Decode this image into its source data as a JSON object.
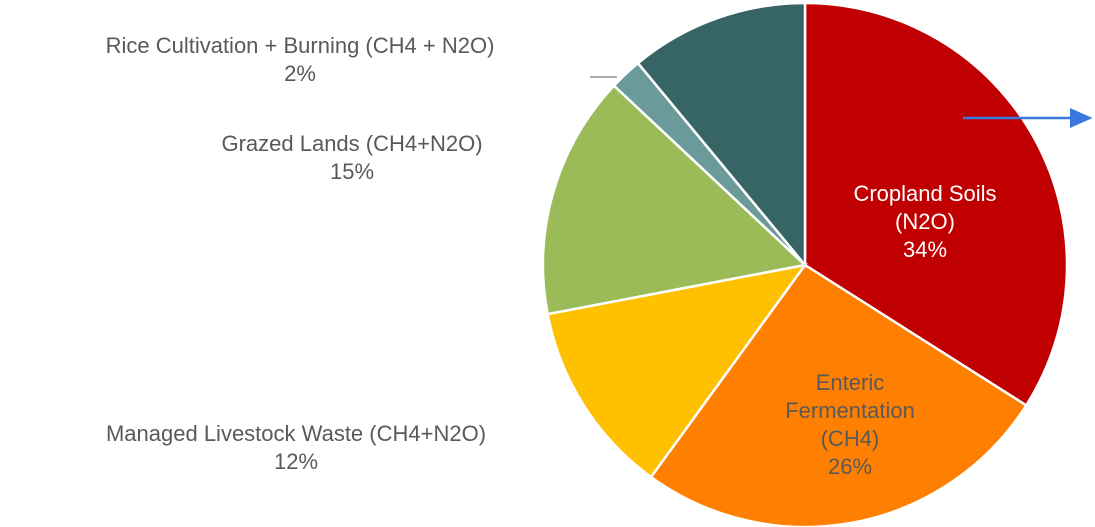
{
  "chart_data": {
    "type": "pie",
    "categories": [
      "Cropland Soils (N2O)",
      "Enteric Fermentation (CH4)",
      "Managed Livestock Waste (CH4+N2O)",
      "Grazed Lands (CH4+N2O)",
      "Rice Cultivation + Burning (CH4 + N2O)",
      null
    ],
    "values": [
      34,
      26,
      12,
      15,
      2,
      11
    ],
    "value_labels": [
      "34%",
      "26%",
      "12%",
      "15%",
      "2%",
      null
    ],
    "colors": [
      "#c00000",
      "#ff8000",
      "#ffc000",
      "#9bbb59",
      "#6b9a9a",
      "#376565"
    ]
  }
}
